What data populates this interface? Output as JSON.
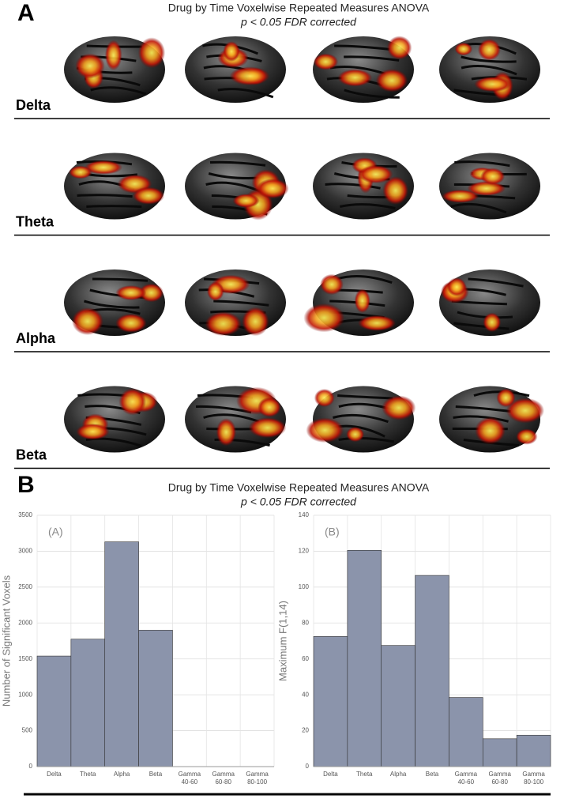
{
  "panel_a": {
    "label": "A",
    "title": "Drug by Time Voxelwise Repeated Measures ANOVA",
    "subtitle": "p < 0.05 FDR corrected",
    "rows": [
      "Delta",
      "Theta",
      "Alpha",
      "Beta"
    ]
  },
  "panel_b": {
    "label": "B",
    "title": "Drug by Time Voxelwise Repeated Measures ANOVA",
    "subtitle": "p < 0.05 FDR corrected"
  },
  "chart_data": [
    {
      "type": "bar",
      "annotation": "(A)",
      "y_label": "Number of Significant Voxels",
      "categories": [
        "Delta",
        "Theta",
        "Alpha",
        "Beta",
        "Gamma 40-60",
        "Gamma 60-80",
        "Gamma 80-100"
      ],
      "values": [
        1540,
        1775,
        3130,
        1900,
        0,
        0,
        0
      ],
      "color": "#8b94ab",
      "ylim": [
        0,
        3500
      ],
      "yticks": [
        0,
        500,
        1000,
        1500,
        2000,
        2500,
        3000,
        3500
      ],
      "grid": true
    },
    {
      "type": "bar",
      "annotation": "(B)",
      "y_label": "Maximum F(1,14)",
      "categories": [
        "Delta",
        "Theta",
        "Alpha",
        "Beta",
        "Gamma 40-60",
        "Gamma 60-80",
        "Gamma 80-100"
      ],
      "values": [
        72.5,
        120.5,
        67.5,
        106.5,
        38.5,
        15.5,
        17.5
      ],
      "color": "#8b94ab",
      "ylim": [
        0,
        140
      ],
      "yticks": [
        0,
        20,
        40,
        60,
        80,
        100,
        120,
        140
      ],
      "grid": true
    }
  ]
}
